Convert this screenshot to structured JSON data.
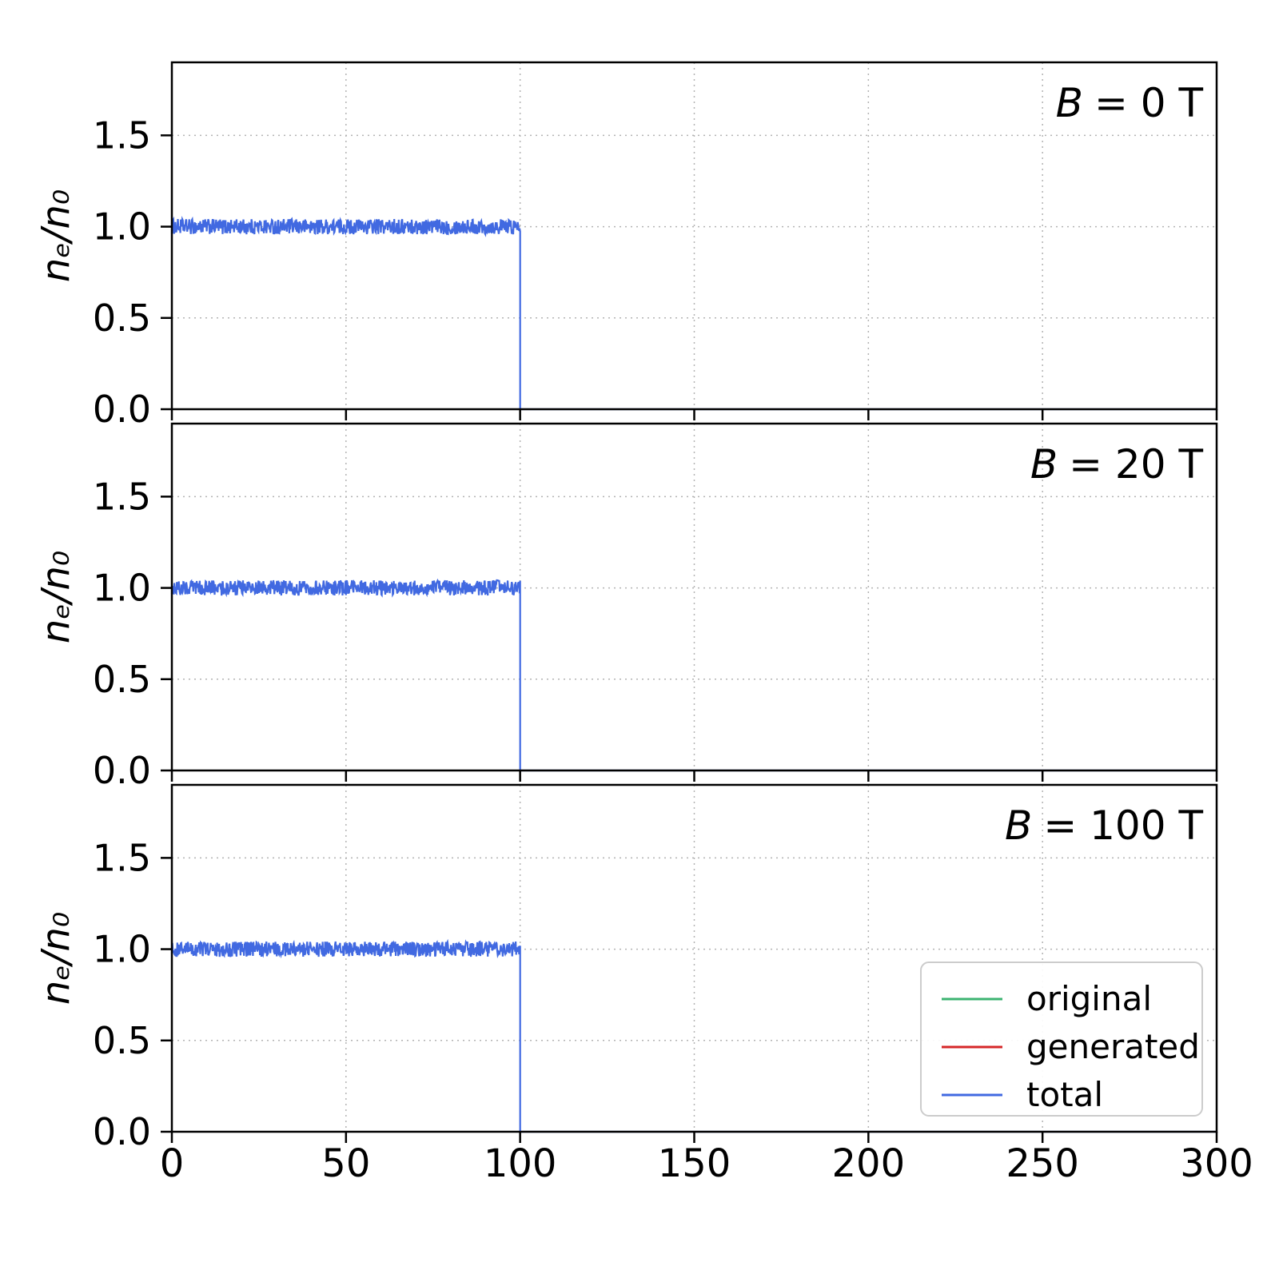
{
  "figure": {
    "background": "#ffffff",
    "x_tick_labels": [
      "0",
      "50",
      "100",
      "150",
      "200",
      "250",
      "300"
    ],
    "colors": {
      "grid": "#b3b3b3",
      "spine": "#000000",
      "original": "#3cb371",
      "generated": "#d62728",
      "total": "#4169e1"
    }
  },
  "legend": {
    "entries": [
      {
        "label": "original",
        "series": "original"
      },
      {
        "label": "generated",
        "series": "generated"
      },
      {
        "label": "total",
        "series": "total"
      }
    ]
  },
  "chart_data": [
    {
      "type": "line",
      "annotation": "B = 0 T",
      "ylabel": "nₑ/n₀",
      "xlim": [
        0,
        300
      ],
      "ylim": [
        0,
        1.9
      ],
      "xticks": [
        0,
        50,
        100,
        150,
        200,
        250,
        300
      ],
      "yticks": [
        0.0,
        0.5,
        1.0,
        1.5
      ],
      "grid": true,
      "show_x_tick_labels": false,
      "show_legend": false,
      "series": [
        {
          "name": "original",
          "color": "#3cb371",
          "segments": [
            {
              "x0": 0,
              "x1": 300,
              "y": 0,
              "noise": 0
            }
          ]
        },
        {
          "name": "generated",
          "color": "#d62728",
          "segments": [
            {
              "x0": 0,
              "x1": 300,
              "y": 0,
              "noise": 0
            }
          ]
        },
        {
          "name": "total",
          "color": "#4169e1",
          "segments": [
            {
              "x0": 0,
              "x1": 100,
              "y": 1.0,
              "noise": 0.042
            },
            {
              "x0": 100,
              "x1": 300,
              "y": 0,
              "noise": 0
            }
          ]
        }
      ]
    },
    {
      "type": "line",
      "annotation": "B = 20 T",
      "ylabel": "nₑ/n₀",
      "xlim": [
        0,
        300
      ],
      "ylim": [
        0,
        1.9
      ],
      "xticks": [
        0,
        50,
        100,
        150,
        200,
        250,
        300
      ],
      "yticks": [
        0.0,
        0.5,
        1.0,
        1.5
      ],
      "grid": true,
      "show_x_tick_labels": false,
      "show_legend": false,
      "series": [
        {
          "name": "original",
          "color": "#3cb371",
          "segments": [
            {
              "x0": 0,
              "x1": 300,
              "y": 0,
              "noise": 0
            }
          ]
        },
        {
          "name": "generated",
          "color": "#d62728",
          "segments": [
            {
              "x0": 0,
              "x1": 300,
              "y": 0,
              "noise": 0
            }
          ]
        },
        {
          "name": "total",
          "color": "#4169e1",
          "segments": [
            {
              "x0": 0,
              "x1": 100,
              "y": 1.0,
              "noise": 0.042
            },
            {
              "x0": 100,
              "x1": 300,
              "y": 0,
              "noise": 0
            }
          ]
        }
      ]
    },
    {
      "type": "line",
      "annotation": "B = 100 T",
      "ylabel": "nₑ/n₀",
      "xlim": [
        0,
        300
      ],
      "ylim": [
        0,
        1.9
      ],
      "xticks": [
        0,
        50,
        100,
        150,
        200,
        250,
        300
      ],
      "yticks": [
        0.0,
        0.5,
        1.0,
        1.5
      ],
      "grid": true,
      "show_x_tick_labels": true,
      "show_legend": true,
      "series": [
        {
          "name": "original",
          "color": "#3cb371",
          "segments": [
            {
              "x0": 0,
              "x1": 300,
              "y": 0,
              "noise": 0
            }
          ]
        },
        {
          "name": "generated",
          "color": "#d62728",
          "segments": [
            {
              "x0": 0,
              "x1": 300,
              "y": 0,
              "noise": 0
            }
          ]
        },
        {
          "name": "total",
          "color": "#4169e1",
          "segments": [
            {
              "x0": 0,
              "x1": 100,
              "y": 1.0,
              "noise": 0.042
            },
            {
              "x0": 100,
              "x1": 300,
              "y": 0,
              "noise": 0
            }
          ]
        }
      ]
    }
  ]
}
